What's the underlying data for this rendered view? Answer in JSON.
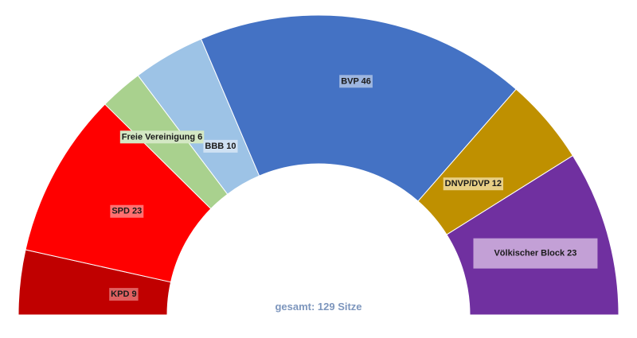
{
  "chart_data": {
    "type": "pie",
    "variant": "semicircle parliament chart",
    "total_label": "gesamt: 129 Sitze",
    "total": 129,
    "series": [
      {
        "name": "KPD",
        "label": "KPD 9",
        "value": 9,
        "color": "#c00000",
        "label_bg": "#e06060"
      },
      {
        "name": "SPD",
        "label": "SPD 23",
        "value": 23,
        "color": "#ff0000",
        "label_bg": "#ff7070"
      },
      {
        "name": "Freie Vereinigung",
        "label": "Freie Vereinigung 6",
        "value": 6,
        "color": "#a9d18e",
        "label_bg": "#d4e8c4"
      },
      {
        "name": "BBB",
        "label": "BBB 10",
        "value": 10,
        "color": "#9dc3e6",
        "label_bg": "#cfe1f3"
      },
      {
        "name": "BVP",
        "label": "BVP 46",
        "value": 46,
        "color": "#4472c4",
        "label_bg": "#9eb6e0"
      },
      {
        "name": "DNVP/DVP",
        "label": "DNVP/DVP 12",
        "value": 12,
        "color": "#bf9000",
        "label_bg": "#e8cf85"
      },
      {
        "name": "Völkischer Block",
        "label": "Völkischer Block 23",
        "value": 23,
        "color": "#7030a0",
        "label_bg": "#c3a0d6"
      }
    ]
  }
}
